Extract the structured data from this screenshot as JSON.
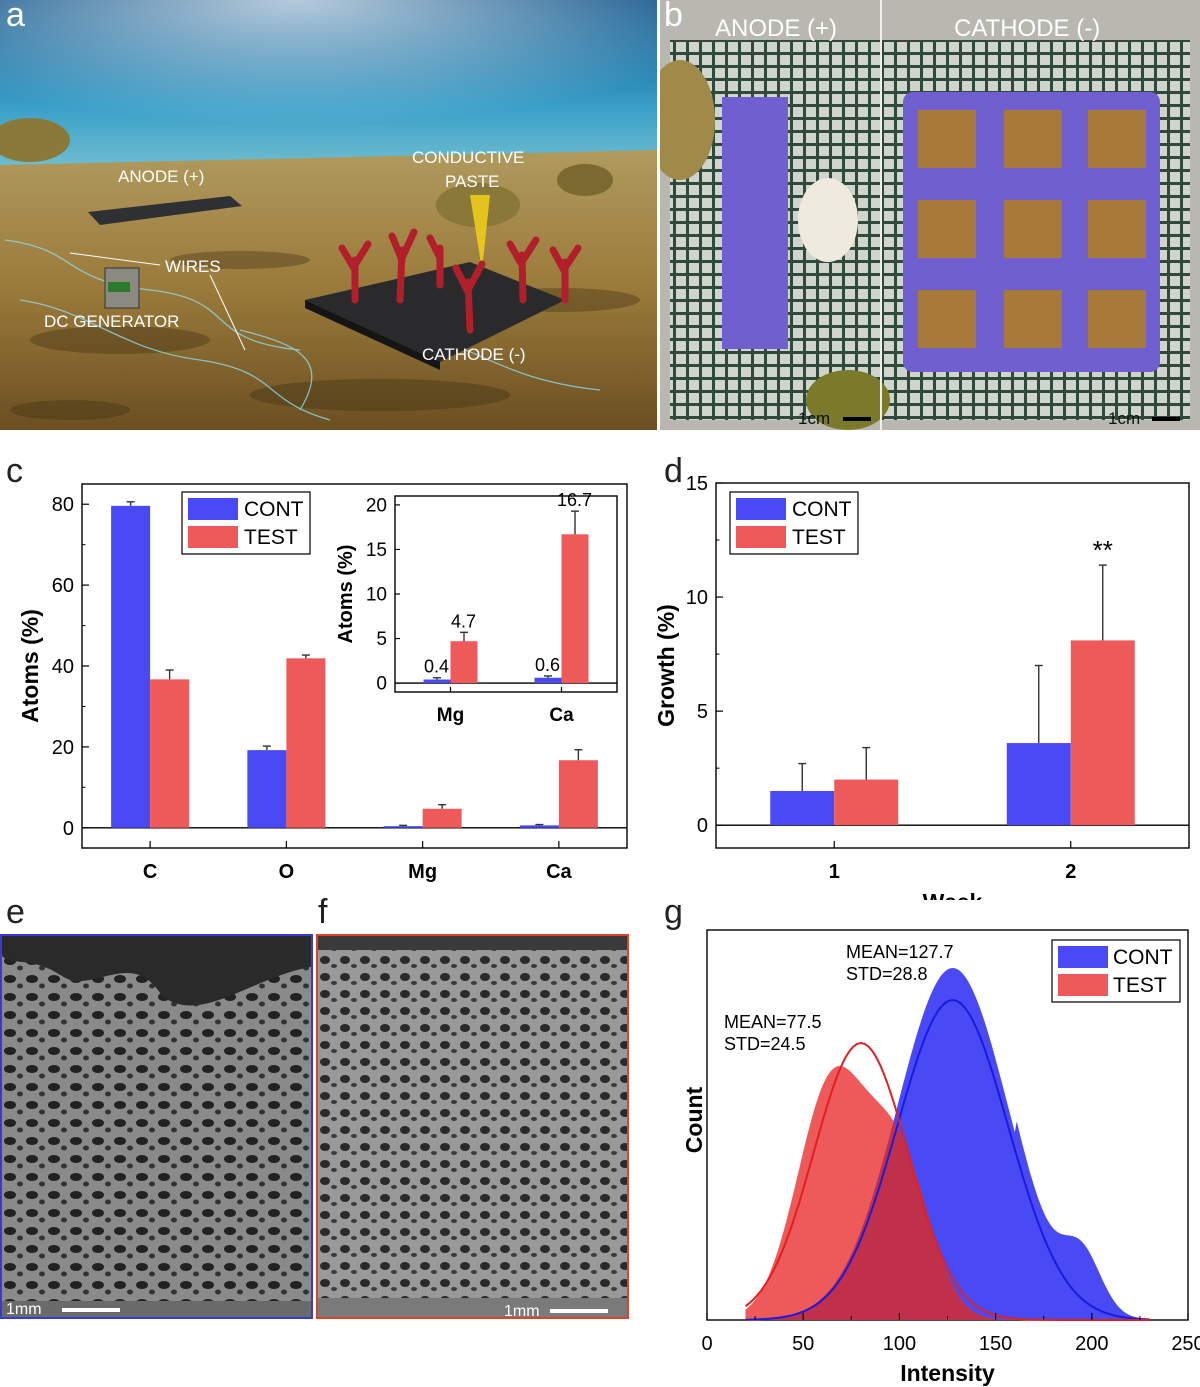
{
  "panels": {
    "a": {
      "letter": "a",
      "labels": {
        "anode": "ANODE (+)",
        "conductive_1": "CONDUCTIVE",
        "conductive_2": "PASTE",
        "wires": "WIRES",
        "dc": "DC GENERATOR",
        "cathode": "CATHODE (-)"
      }
    },
    "b": {
      "letter": "b",
      "labels": {
        "anode": "ANODE (+)",
        "cathode": "CATHODE (-)",
        "scale_left": "1cm",
        "scale_right": "1cm"
      }
    },
    "c": {
      "letter": "c"
    },
    "d": {
      "letter": "d"
    },
    "e": {
      "letter": "e",
      "scale": "1mm"
    },
    "f": {
      "letter": "f",
      "scale": "1mm"
    },
    "g": {
      "letter": "g"
    }
  },
  "colors": {
    "cont": "#4a4af5",
    "test": "#ee5a5a",
    "overlap": "#c0304a",
    "cont_fit": "#1a1ae0",
    "test_fit": "#e02020"
  },
  "chart_data": [
    {
      "id": "c",
      "type": "bar",
      "ylabel": "Atoms (%)",
      "xlabel": "",
      "categories": [
        "C",
        "O",
        "Mg",
        "Ca"
      ],
      "ylim": [
        -5,
        85
      ],
      "yticks": [
        "0",
        "20",
        "40",
        "60",
        "80"
      ],
      "legend_position": "top-left",
      "series": [
        {
          "name": "CONT",
          "values": [
            79.6,
            19.2,
            0.4,
            0.6
          ],
          "errors": [
            1.0,
            1.0,
            0.2,
            0.2
          ]
        },
        {
          "name": "TEST",
          "values": [
            36.7,
            41.9,
            4.7,
            16.7
          ],
          "errors": [
            2.3,
            0.8,
            1.0,
            2.6
          ]
        }
      ],
      "inset": {
        "type": "bar",
        "ylabel": "Atoms (%)",
        "categories": [
          "Mg",
          "Ca"
        ],
        "ylim": [
          -1,
          21
        ],
        "yticks": [
          "0",
          "5",
          "10",
          "15",
          "20"
        ],
        "series": [
          {
            "name": "CONT",
            "values": [
              0.4,
              0.6
            ],
            "errors": [
              0.2,
              0.2
            ]
          },
          {
            "name": "TEST",
            "values": [
              4.7,
              16.7
            ],
            "errors": [
              1.0,
              2.6
            ]
          }
        ],
        "data_labels": [
          "0.4",
          "4.7",
          "0.6",
          "16.7"
        ]
      }
    },
    {
      "id": "d",
      "type": "bar",
      "ylabel": "Growth (%)",
      "xlabel": "Week",
      "categories": [
        "1",
        "2"
      ],
      "ylim": [
        -1,
        15
      ],
      "yticks": [
        "0",
        "5",
        "10",
        "15"
      ],
      "legend_position": "top-left",
      "series": [
        {
          "name": "CONT",
          "values": [
            1.5,
            3.6
          ],
          "errors": [
            1.2,
            3.4
          ]
        },
        {
          "name": "TEST",
          "values": [
            2.0,
            8.1
          ],
          "errors": [
            1.4,
            3.3
          ]
        }
      ],
      "annotations": [
        {
          "text": "**",
          "category": "2",
          "series": "TEST"
        }
      ]
    },
    {
      "id": "g",
      "type": "area",
      "xlabel": "Intensity",
      "ylabel": "Count",
      "xlim": [
        0,
        250
      ],
      "xticks": [
        "0",
        "50",
        "100",
        "150",
        "200",
        "250"
      ],
      "legend_position": "top-right",
      "series": [
        {
          "name": "CONT",
          "mean": 127.7,
          "std": 28.8
        },
        {
          "name": "TEST",
          "mean": 77.5,
          "std": 24.5
        }
      ],
      "annotations": [
        {
          "line1": "MEAN=127.7",
          "line2": "STD=28.8"
        },
        {
          "line1": "MEAN=77.5",
          "line2": "STD=24.5"
        }
      ]
    }
  ]
}
